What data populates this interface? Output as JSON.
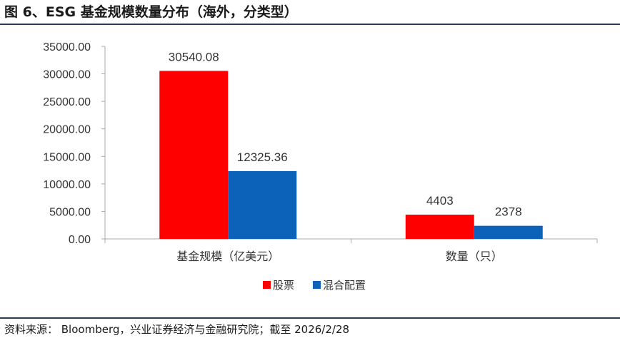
{
  "header": {
    "title": "图 6、ESG 基金规模数量分布（海外，分类型）"
  },
  "footer": {
    "source": "资料来源：  Bloomberg，兴业证券经济与金融研究院；截至 2026/2/28"
  },
  "colors": {
    "equity": "#ff0000",
    "mixed": "#0b62b8",
    "axis": "#aaaaaa",
    "rule": "#2b3b5a"
  },
  "chart_data": {
    "type": "bar",
    "categories": [
      "基金规模（亿美元）",
      "数量（只）"
    ],
    "series": [
      {
        "name": "股票",
        "values": [
          30540.08,
          4403
        ],
        "labels": [
          "30540.08",
          "4403"
        ]
      },
      {
        "name": "混合配置",
        "values": [
          12325.36,
          2378
        ],
        "labels": [
          "12325.36",
          "2378"
        ]
      }
    ],
    "ylim": [
      0,
      35000
    ],
    "yticks": [
      "0.00",
      "5000.00",
      "10000.00",
      "15000.00",
      "20000.00",
      "25000.00",
      "30000.00",
      "35000.00"
    ],
    "grid": false,
    "legend": "bottom"
  }
}
